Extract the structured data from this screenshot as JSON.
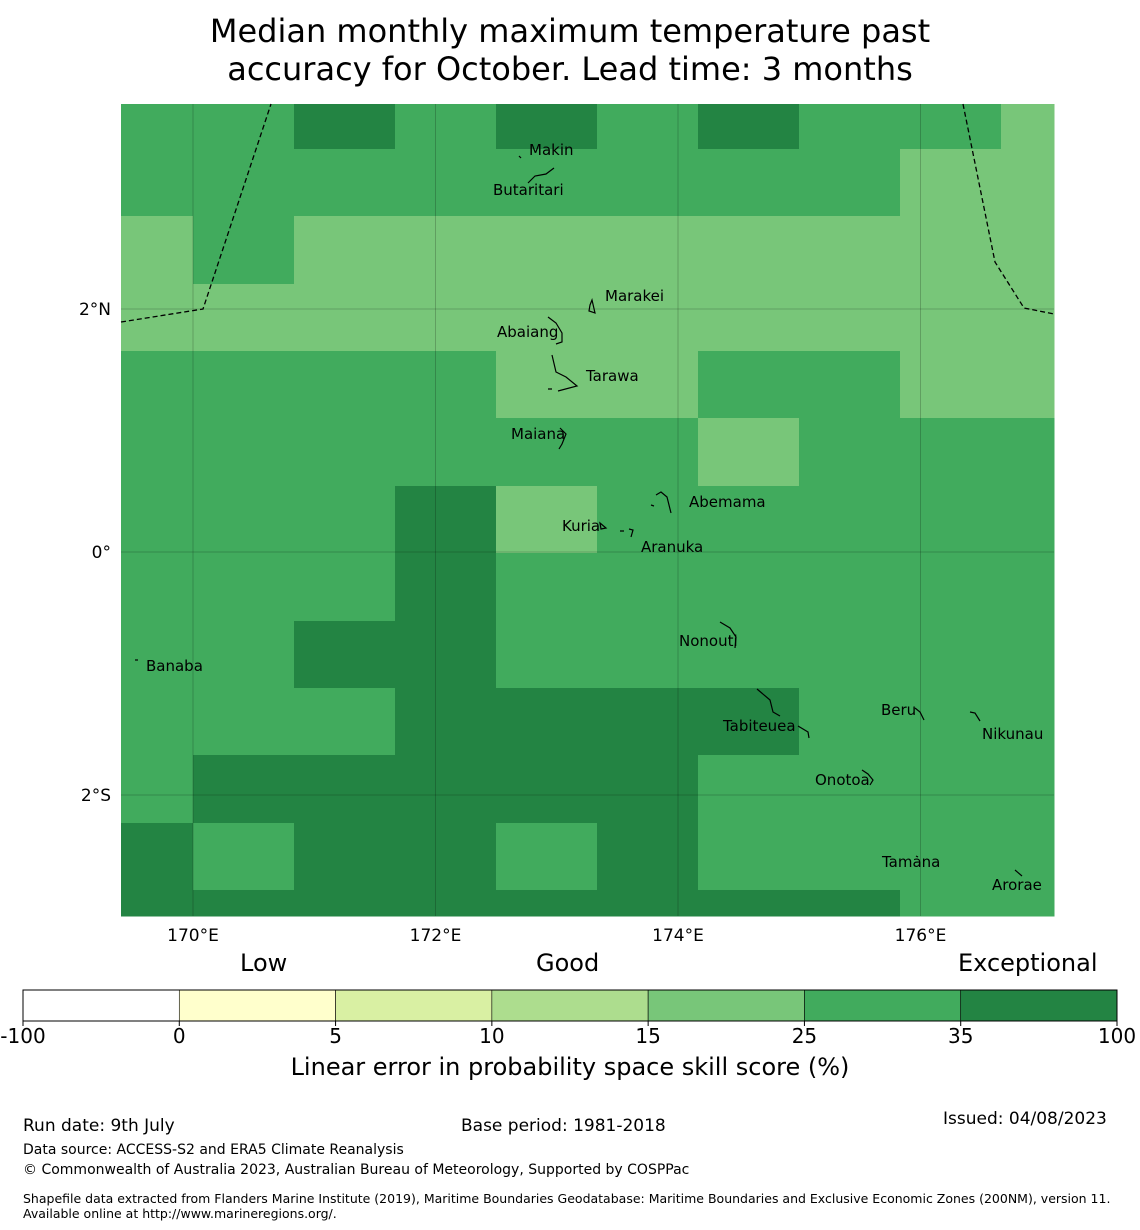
{
  "title": {
    "line1": "Median monthly maximum temperature past",
    "line2": "accuracy for October. Lead time: 3 months"
  },
  "map": {
    "lon_range": [
      169.4,
      177.1
    ],
    "lat_range": [
      -3.0,
      3.7
    ],
    "lon_grid": [
      170,
      172,
      174,
      176
    ],
    "lat_grid": [
      2,
      0,
      -2
    ],
    "lon_labels": [
      "170°E",
      "172°E",
      "174°E",
      "176°E"
    ],
    "lat_labels": [
      "2°N",
      "0°",
      "2°S"
    ],
    "skill_grid_rows_north_to_south": [
      [
        "Good+",
        "Good+",
        "Exceptional",
        "Good+",
        "Exceptional",
        "Good+",
        "Exceptional",
        "Good+",
        "Good+",
        "Good"
      ],
      [
        "Good+",
        "Good+",
        "Good+",
        "Good+",
        "Good+",
        "Good+",
        "Good+",
        "Good+",
        "Good",
        "Good"
      ],
      [
        "Good",
        "Good+",
        "Good",
        "Good",
        "Good",
        "Good",
        "Good",
        "Good",
        "Good",
        "Good"
      ],
      [
        "Good",
        "Good",
        "Good",
        "Good",
        "Good",
        "Good",
        "Good",
        "Good",
        "Good",
        "Good"
      ],
      [
        "Good+",
        "Good+",
        "Good+",
        "Good+",
        "Good",
        "Good",
        "Good+",
        "Good+",
        "Good",
        "Good"
      ],
      [
        "Good+",
        "Good+",
        "Good+",
        "Good+",
        "Good+",
        "Good+",
        "Good",
        "Good+",
        "Good+",
        "Good+"
      ],
      [
        "Good+",
        "Good+",
        "Good+",
        "Exceptional",
        "Good",
        "Good+",
        "Good+",
        "Good+",
        "Good+",
        "Good+"
      ],
      [
        "Good+",
        "Good+",
        "Good+",
        "Exceptional",
        "Good+",
        "Good+",
        "Good+",
        "Good+",
        "Good+",
        "Good+"
      ],
      [
        "Good+",
        "Good+",
        "Exceptional",
        "Exceptional",
        "Good+",
        "Good+",
        "Good+",
        "Good+",
        "Good+",
        "Good+"
      ],
      [
        "Good+",
        "Good+",
        "Good+",
        "Exceptional",
        "Exceptional",
        "Exceptional",
        "Exceptional",
        "Good+",
        "Good+",
        "Good+"
      ],
      [
        "Good+",
        "Exceptional",
        "Exceptional",
        "Exceptional",
        "Exceptional",
        "Exceptional",
        "Good+",
        "Good+",
        "Good+",
        "Good+"
      ],
      [
        "Exceptional",
        "Good+",
        "Exceptional",
        "Exceptional",
        "Good+",
        "Exceptional",
        "Good+",
        "Good+",
        "Good+",
        "Good+"
      ],
      [
        "Exceptional",
        "Exceptional",
        "Exceptional",
        "Exceptional",
        "Exceptional",
        "Exceptional",
        "Exceptional",
        "Exceptional",
        "Good+",
        "Good+"
      ]
    ],
    "places": [
      {
        "name": "Makin",
        "lon": 173.0,
        "lat": 3.35
      },
      {
        "name": "Butaritari",
        "lon": 172.95,
        "lat": 3.1
      },
      {
        "name": "Marakei",
        "lon": 173.3,
        "lat": 2.0
      },
      {
        "name": "Abaiang",
        "lon": 172.95,
        "lat": 1.85
      },
      {
        "name": "Tarawa",
        "lon": 173.1,
        "lat": 1.4
      },
      {
        "name": "Maiana",
        "lon": 173.05,
        "lat": 0.95
      },
      {
        "name": "Abemama",
        "lon": 173.9,
        "lat": 0.4
      },
      {
        "name": "Kuria",
        "lon": 173.45,
        "lat": 0.22
      },
      {
        "name": "Aranuka",
        "lon": 173.6,
        "lat": 0.15
      },
      {
        "name": "Nonouti",
        "lon": 174.4,
        "lat": -0.65
      },
      {
        "name": "Banaba",
        "lon": 169.5,
        "lat": -0.88
      },
      {
        "name": "Tabiteuea",
        "lon": 174.8,
        "lat": -1.45
      },
      {
        "name": "Beru",
        "lon": 175.95,
        "lat": -1.3
      },
      {
        "name": "Nikunau",
        "lon": 176.45,
        "lat": -1.35
      },
      {
        "name": "Onotoa",
        "lon": 175.55,
        "lat": -1.8
      },
      {
        "name": "Tamana",
        "lon": 175.98,
        "lat": -2.5
      },
      {
        "name": "Arorae",
        "lon": 176.8,
        "lat": -2.63
      }
    ]
  },
  "legend": {
    "category_labels": [
      "Low",
      "Good",
      "Exceptional"
    ],
    "bins": [
      {
        "from": -100,
        "to": 0,
        "color": "#ffffff"
      },
      {
        "from": 0,
        "to": 5,
        "color": "#ffffcc"
      },
      {
        "from": 5,
        "to": 10,
        "color": "#d9f0a3"
      },
      {
        "from": 10,
        "to": 15,
        "color": "#addd8e"
      },
      {
        "from": 15,
        "to": 25,
        "color": "#78c679"
      },
      {
        "from": 25,
        "to": 35,
        "color": "#41ab5d"
      },
      {
        "from": 35,
        "to": 100,
        "color": "#238443"
      }
    ],
    "tick_labels": [
      "-100",
      "0",
      "5",
      "10",
      "15",
      "25",
      "35",
      "100"
    ],
    "axis_label": "Linear error in probability space skill score (%)"
  },
  "colors": {
    "Good": "#78c679",
    "Good+": "#41ab5d",
    "Exceptional": "#238443"
  },
  "footer": {
    "run_date": "Run date: 9th July",
    "base_period": "Base period: 1981-2018",
    "issued": "Issued: 04/08/2023",
    "data_source": "Data source: ACCESS-S2 and ERA5 Climate Reanalysis",
    "copyright": "© Commonwealth of Australia 2023, Australian Bureau of Meteorology, Supported by COSPPac",
    "shapefile": "Shapefile data extracted from Flanders Marine Institute (2019), Maritime Boundaries Geodatabase: Maritime Boundaries and Exclusive Economic Zones (200NM), version 11. Available online at http://www.marineregions.org/."
  }
}
